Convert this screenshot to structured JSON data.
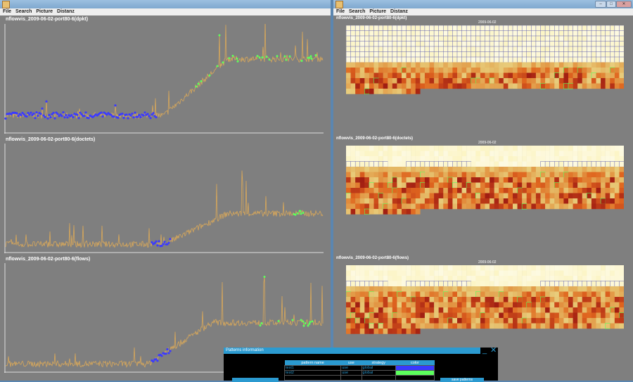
{
  "left_window": {
    "menu": [
      "File",
      "Search",
      "Picture",
      "Distanz"
    ],
    "plots": [
      {
        "title": "nflowvis_2009-06-02-port80-6(dpkt)"
      },
      {
        "title": "nflowvis_2009-06-02-port80-6(doctets)"
      },
      {
        "title": "nflowvis_2009-06-02-port80-6(flows)"
      }
    ]
  },
  "right_window": {
    "menu": [
      "File",
      "Search",
      "Picture",
      "Distanz"
    ],
    "heatmaps": [
      {
        "title": "nflowvis_2009-06-02-port80-6(dpkt)",
        "date": "2009-06-02"
      },
      {
        "title": "nflowvis_2009-06-02-port80-6(doctets)",
        "date": "2009-06-02"
      },
      {
        "title": "nflowvis_2009-06-02-port80-6(flows)",
        "date": "2009-06-02"
      }
    ],
    "controls": {
      "minimize": "–",
      "maximize": "□",
      "close": "✕"
    }
  },
  "dialog": {
    "title": "Patterns information",
    "minimize": "_",
    "close": "✕",
    "columns": [
      "pattern name",
      "use",
      "strategy",
      "color"
    ],
    "rows": [
      {
        "name": "test1",
        "use": "use",
        "strategy": "global",
        "color": "#3a3aff"
      },
      {
        "name": "test2",
        "use": "use",
        "strategy": "global",
        "color": "#5cff5c"
      }
    ],
    "save_button": "save patterns"
  },
  "colors": {
    "pattern1": "#3a3aff",
    "pattern2": "#5cff5c",
    "panel": "#7f7f7f",
    "accent": "#2b9ad0"
  }
}
